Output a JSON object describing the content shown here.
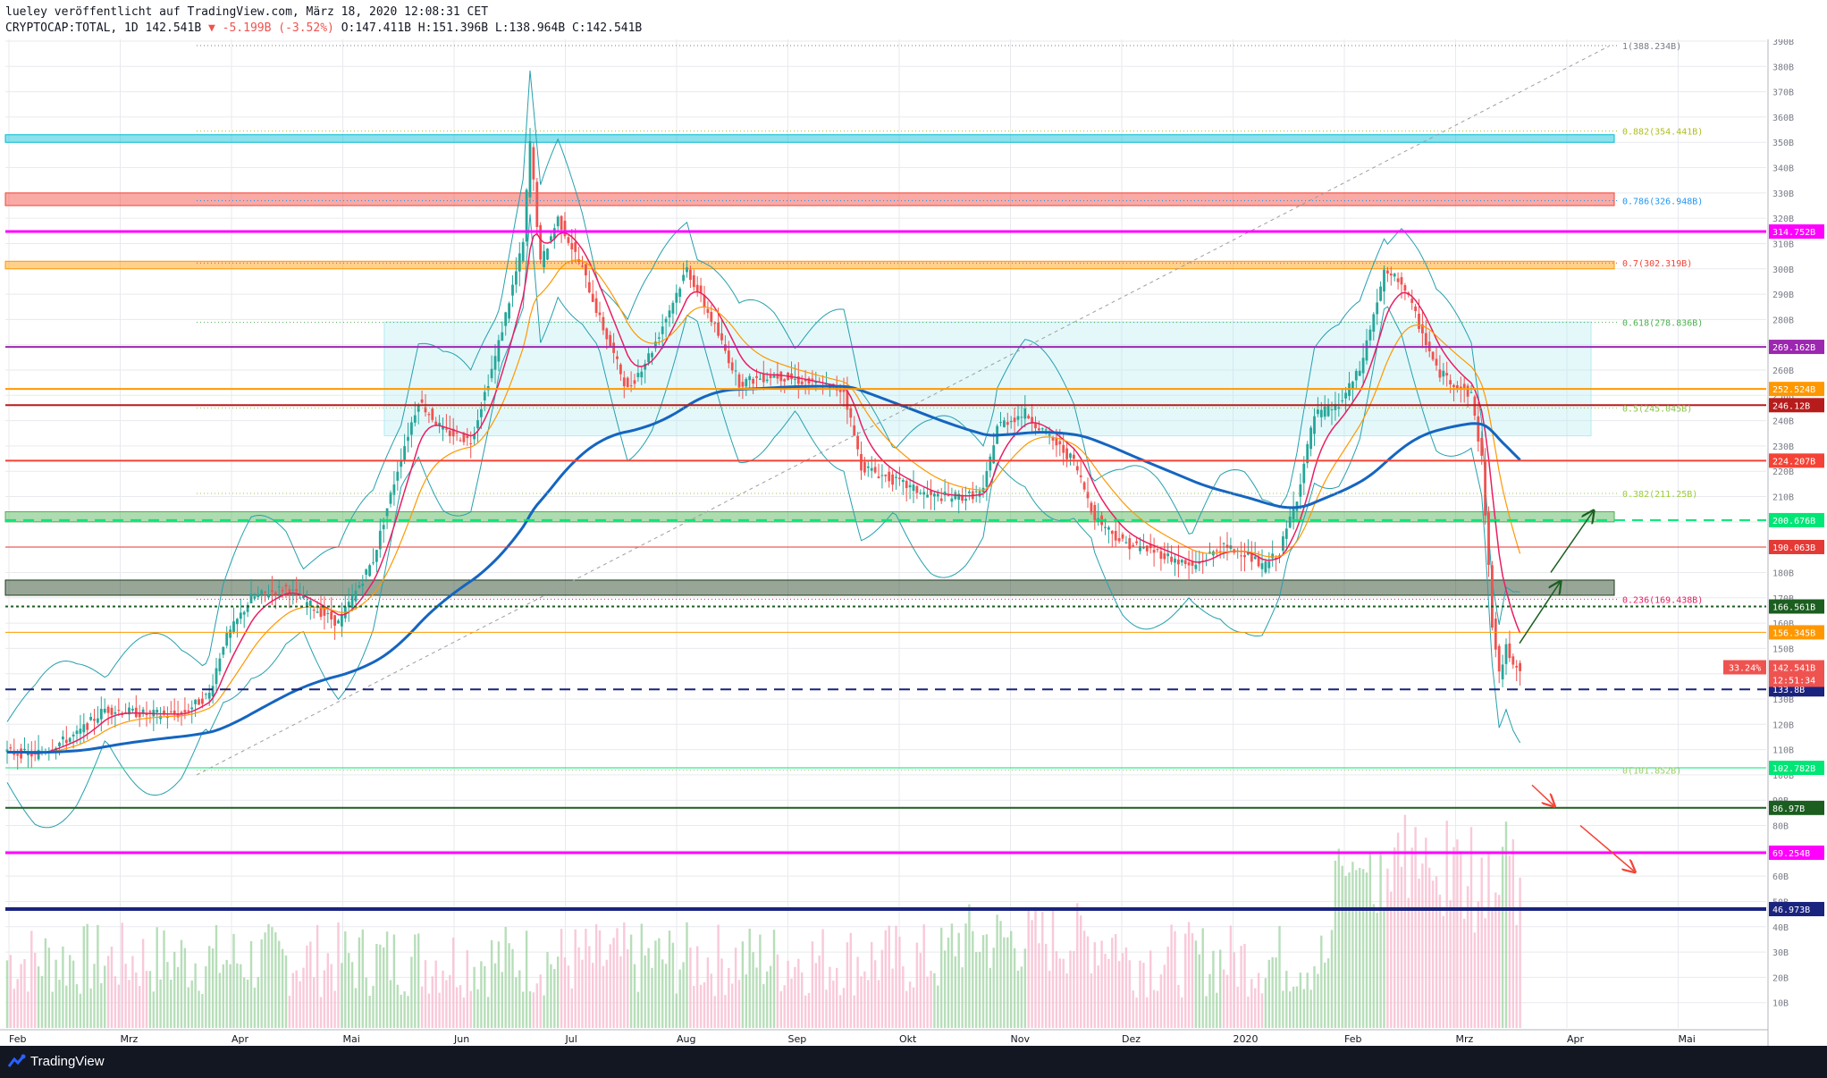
{
  "header": {
    "line1": "lueley veröffentlicht auf TradingView.com, März 18, 2020 12:08:31 CET",
    "symbol": "CRYPTOCAP:TOTAL, 1D 142.541B",
    "change": "▼ -5.199B (-3.52%)",
    "ohlc": "O:147.411B H:151.396B L:138.964B C:142.541B"
  },
  "footer": {
    "brand": "TradingView"
  },
  "colors": {
    "background": "#ffffff",
    "grid": "#e8eaee",
    "up": "#26a69a",
    "down": "#ef5350",
    "ema200": "#1565c0",
    "ema_fast": "#e91e63",
    "ema_mid": "#ff9800",
    "bollinger": "#26a0ad",
    "magenta": "#ff00ff",
    "purple": "#9c27b0",
    "navy": "#1a237e",
    "green_dash": "#00c853",
    "dark_green": "#1b5e20"
  },
  "chart_data": {
    "type": "candlestick",
    "title": "CRYPTOCAP:TOTAL, 1D",
    "ylim": [
      0,
      390
    ],
    "y_unit": "B",
    "y_ticks": [
      10,
      20,
      30,
      40,
      50,
      60,
      70,
      80,
      90,
      100,
      110,
      120,
      130,
      140,
      150,
      160,
      170,
      180,
      190,
      200,
      210,
      220,
      230,
      240,
      250,
      260,
      270,
      280,
      290,
      300,
      310,
      320,
      330,
      340,
      350,
      360,
      370,
      380,
      390
    ],
    "x_labels": [
      "Feb",
      "Mrz",
      "Apr",
      "Mai",
      "Jun",
      "Jul",
      "Aug",
      "Sep",
      "Okt",
      "Nov",
      "Dez",
      "2020",
      "Feb",
      "Mrz",
      "Apr",
      "Mai"
    ],
    "price_path": [
      [
        0,
        109
      ],
      [
        8,
        108
      ],
      [
        20,
        116
      ],
      [
        28,
        126
      ],
      [
        40,
        124
      ],
      [
        50,
        124
      ],
      [
        58,
        132
      ],
      [
        62,
        152
      ],
      [
        70,
        170
      ],
      [
        80,
        174
      ],
      [
        88,
        166
      ],
      [
        95,
        160
      ],
      [
        105,
        185
      ],
      [
        113,
        226
      ],
      [
        118,
        248
      ],
      [
        125,
        236
      ],
      [
        133,
        232
      ],
      [
        140,
        265
      ],
      [
        148,
        310
      ],
      [
        150,
        350
      ],
      [
        153,
        302
      ],
      [
        158,
        320
      ],
      [
        165,
        300
      ],
      [
        170,
        280
      ],
      [
        178,
        252
      ],
      [
        185,
        268
      ],
      [
        195,
        300
      ],
      [
        202,
        280
      ],
      [
        210,
        255
      ],
      [
        220,
        258
      ],
      [
        230,
        255
      ],
      [
        240,
        252
      ],
      [
        245,
        222
      ],
      [
        255,
        216
      ],
      [
        265,
        210
      ],
      [
        275,
        210
      ],
      [
        280,
        212
      ],
      [
        284,
        238
      ],
      [
        292,
        243
      ],
      [
        300,
        232
      ],
      [
        306,
        224
      ],
      [
        312,
        202
      ],
      [
        320,
        192
      ],
      [
        330,
        188
      ],
      [
        340,
        182
      ],
      [
        348,
        190
      ],
      [
        355,
        188
      ],
      [
        360,
        182
      ],
      [
        365,
        188
      ],
      [
        370,
        210
      ],
      [
        375,
        242
      ],
      [
        382,
        246
      ],
      [
        388,
        260
      ],
      [
        395,
        298
      ],
      [
        400,
        295
      ],
      [
        405,
        278
      ],
      [
        410,
        260
      ],
      [
        415,
        255
      ],
      [
        420,
        250
      ],
      [
        423,
        225
      ],
      [
        426,
        160
      ],
      [
        428,
        139
      ],
      [
        430,
        150
      ],
      [
        432,
        145
      ],
      [
        434,
        142.5
      ]
    ],
    "current_price": 142.541,
    "current_change_pct": "33.24%",
    "countdown": "12:51:34",
    "horizontal_levels": [
      {
        "value": 314.752,
        "label": "314.752B",
        "color": "#ff00ff",
        "style": "solid",
        "width": 3
      },
      {
        "value": 269.162,
        "label": "269.162B",
        "color": "#9c27b0",
        "style": "solid",
        "width": 2
      },
      {
        "value": 252.524,
        "label": "252.524B",
        "color": "#ff9800",
        "style": "solid",
        "width": 2
      },
      {
        "value": 246.12,
        "label": "246.12B",
        "color": "#b71c1c",
        "style": "solid",
        "width": 2
      },
      {
        "value": 224.207,
        "label": "224.207B",
        "color": "#f44336",
        "style": "solid",
        "width": 2
      },
      {
        "value": 200.676,
        "label": "200.676B",
        "color": "#00e676",
        "style": "dashed",
        "width": 2
      },
      {
        "value": 190.063,
        "label": "190.063B",
        "color": "#e53935",
        "style": "solid",
        "width": 1
      },
      {
        "value": 166.561,
        "label": "166.561B",
        "color": "#1b5e20",
        "style": "dotted",
        "width": 2
      },
      {
        "value": 156.345,
        "label": "156.345B",
        "color": "#ff9800",
        "style": "solid",
        "width": 1
      },
      {
        "value": 133.8,
        "label": "133.8B",
        "color": "#1a237e",
        "style": "dashed",
        "width": 2
      },
      {
        "value": 102.782,
        "label": "102.782B",
        "color": "#00e676",
        "style": "solid",
        "width": 1
      },
      {
        "value": 86.97,
        "label": "86.97B",
        "color": "#1b5e20",
        "style": "solid",
        "width": 2
      },
      {
        "value": 69.254,
        "label": "69.254B",
        "color": "#ff00ff",
        "style": "solid",
        "width": 3
      },
      {
        "value": 46.973,
        "label": "46.973B",
        "color": "#1a237e",
        "style": "solid",
        "width": 4
      }
    ],
    "fib_levels": [
      {
        "value": 388.234,
        "label": "1(388.234B)",
        "color": "#787b86"
      },
      {
        "value": 354.441,
        "label": "0.882(354.441B)",
        "color": "#b0bf1a"
      },
      {
        "value": 326.948,
        "label": "0.786(326.948B)",
        "color": "#2196f3"
      },
      {
        "value": 302.319,
        "label": "0.7(302.319B)",
        "color": "#f44336"
      },
      {
        "value": 278.836,
        "label": "0.618(278.836B)",
        "color": "#4caf50"
      },
      {
        "value": 245.045,
        "label": "0.5(245.045B)",
        "color": "#8bc34a"
      },
      {
        "value": 211.25,
        "label": "0.382(211.25B)",
        "color": "#9acd32"
      },
      {
        "value": 169.438,
        "label": "0.236(169.438B)",
        "color": "#e91e63"
      },
      {
        "value": 101.852,
        "label": "0(101.852B)",
        "color": "#9ccc65"
      }
    ],
    "zones": [
      {
        "from": 350,
        "to": 353,
        "color": "#00bcd4"
      },
      {
        "from": 325,
        "to": 330,
        "color": "#f44336"
      },
      {
        "from": 300,
        "to": 303,
        "color": "#ff9800"
      },
      {
        "from": 200,
        "to": 204,
        "color": "#4caf50"
      },
      {
        "from": 171,
        "to": 177,
        "color": "#1b3a1b"
      },
      {
        "from": 234,
        "to": 279,
        "color": "#b2ebf2"
      }
    ]
  }
}
